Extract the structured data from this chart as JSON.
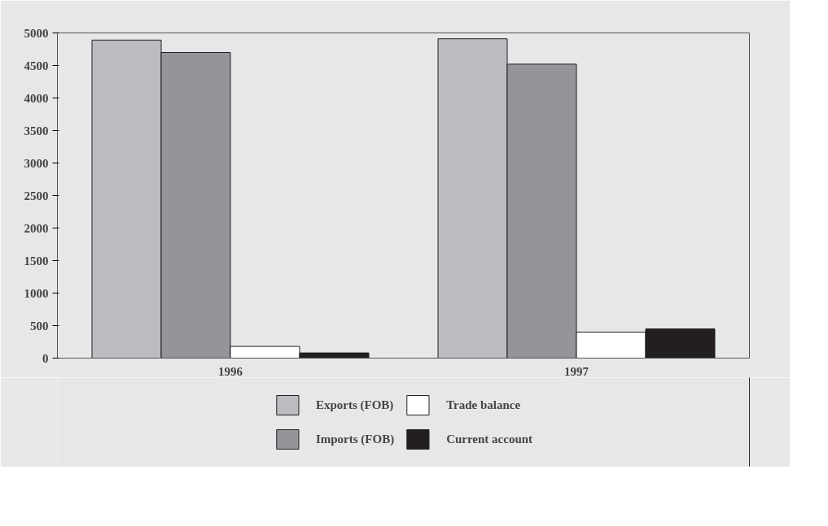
{
  "chart_data": {
    "type": "bar",
    "categories": [
      "1996",
      "1997"
    ],
    "series": [
      {
        "name": "Exports (FOB)",
        "color": "#bbbcc0",
        "values": [
          4890,
          4910
        ]
      },
      {
        "name": "Imports (FOB)",
        "color": "#949599",
        "values": [
          4700,
          4520
        ]
      },
      {
        "name": "Trade balance",
        "color": "#ffffff",
        "values": [
          180,
          400
        ]
      },
      {
        "name": "Current account",
        "color": "#231f20",
        "values": [
          80,
          450
        ]
      }
    ],
    "ylim": [
      0,
      5000
    ],
    "yticks": [
      0,
      500,
      1000,
      1500,
      2000,
      2500,
      3000,
      3500,
      4000,
      4500,
      5000
    ],
    "grid": false,
    "legend": "bottom"
  }
}
